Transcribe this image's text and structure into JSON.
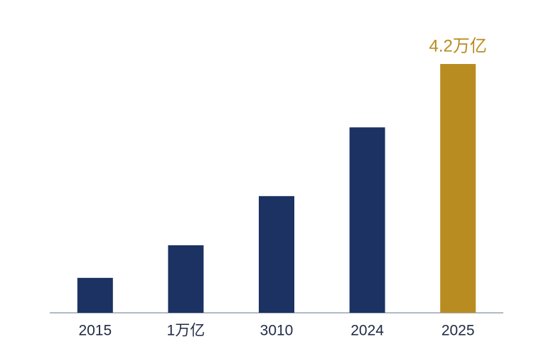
{
  "chart_data": {
    "type": "bar",
    "categories": [
      "2015",
      "1万亿",
      "3010",
      "2024",
      "2025"
    ],
    "values": [
      0.59,
      1.14,
      1.97,
      3.13,
      4.2
    ],
    "value_labels": [
      null,
      null,
      null,
      null,
      "4.2万亿"
    ],
    "colors": [
      "#1b3263",
      "#1b3263",
      "#1b3263",
      "#1b3263",
      "#b98c22"
    ]
  }
}
